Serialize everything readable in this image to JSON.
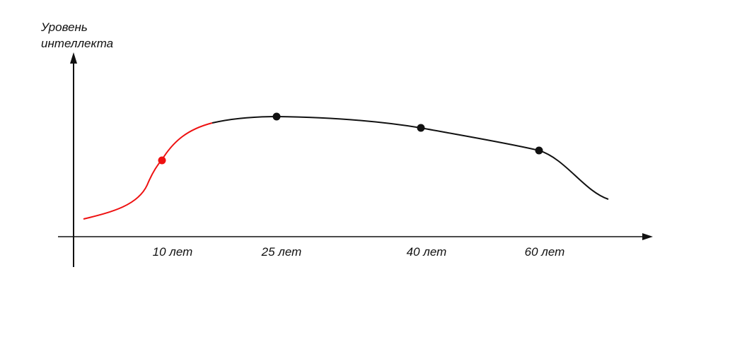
{
  "axis": {
    "y_label": [
      "Уровень",
      "интеллекта"
    ]
  },
  "x_labels": [
    "10 лет",
    "25 лет",
    "40 лет",
    "60 лет"
  ]
}
